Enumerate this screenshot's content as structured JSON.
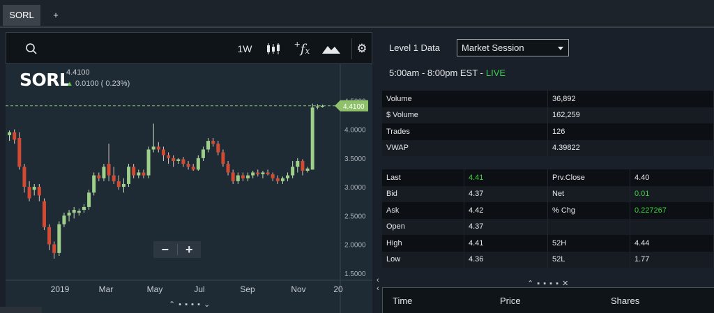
{
  "tabs": {
    "active_label": "SORL",
    "add_label": "+"
  },
  "toolbar": {
    "period_label": "1W",
    "fx_label": "f",
    "fx_plus": "+"
  },
  "icons": [
    "search-icon",
    "candlestick-icon",
    "function-icon",
    "mountain-chart-icon",
    "gear-icon",
    "zoom-out-icon",
    "zoom-in-icon"
  ],
  "quote_header": {
    "symbol": "SORL",
    "price": "4.4100",
    "change": "0.0100 ( 0.23%)"
  },
  "zoom": {
    "minus": "−",
    "plus": "+"
  },
  "handles": {
    "chart": "⌃ ▪ ▪ ▪ ▪ ⌄",
    "right": "⌃ ▪ ▪ ▪ ▪ ✕"
  },
  "chart_data": {
    "type": "candlestick",
    "x_tick_labels": [
      "2019",
      "Mar",
      "May",
      "Jul",
      "Sep",
      "Nov",
      "20"
    ],
    "y_tick_labels": [
      "4.5000",
      "4.0000",
      "3.5000",
      "3.0000",
      "2.5000",
      "2.0000",
      "1.5000"
    ],
    "ylim": [
      1.4,
      4.65
    ],
    "last_price_marker": "4.4100",
    "colors": {
      "up": "#9fd08a",
      "down": "#d24a32",
      "last": "#8fc06a",
      "background": "#1e2a34"
    },
    "candles": [
      [
        3.9,
        3.98,
        3.8,
        3.95
      ],
      [
        3.95,
        4.0,
        3.75,
        3.82
      ],
      [
        3.85,
        3.95,
        3.3,
        3.35
      ],
      [
        3.35,
        3.4,
        2.9,
        3.0
      ],
      [
        3.0,
        3.1,
        2.75,
        2.8
      ],
      [
        2.95,
        3.05,
        2.85,
        3.0
      ],
      [
        3.0,
        3.05,
        2.75,
        2.85
      ],
      [
        2.75,
        2.8,
        2.25,
        2.3
      ],
      [
        2.3,
        2.35,
        1.9,
        2.0
      ],
      [
        2.0,
        2.05,
        1.75,
        1.85
      ],
      [
        1.85,
        2.4,
        1.8,
        2.35
      ],
      [
        2.35,
        2.55,
        2.3,
        2.5
      ],
      [
        2.5,
        2.6,
        2.4,
        2.55
      ],
      [
        2.55,
        2.65,
        2.45,
        2.6
      ],
      [
        2.55,
        2.62,
        2.5,
        2.58
      ],
      [
        2.6,
        2.7,
        2.55,
        2.65
      ],
      [
        2.65,
        2.95,
        2.6,
        2.9
      ],
      [
        2.9,
        3.25,
        2.85,
        3.2
      ],
      [
        3.2,
        3.25,
        3.1,
        3.15
      ],
      [
        3.15,
        3.4,
        3.1,
        3.35
      ],
      [
        3.4,
        3.75,
        3.1,
        3.2
      ],
      [
        3.2,
        3.35,
        3.05,
        3.1
      ],
      [
        3.1,
        3.2,
        2.95,
        3.0
      ],
      [
        3.0,
        3.15,
        2.9,
        3.05
      ],
      [
        3.05,
        3.4,
        3.0,
        3.35
      ],
      [
        3.35,
        3.4,
        3.15,
        3.2
      ],
      [
        3.2,
        3.3,
        3.15,
        3.25
      ],
      [
        3.25,
        3.3,
        3.15,
        3.2
      ],
      [
        3.2,
        3.7,
        3.15,
        3.65
      ],
      [
        3.65,
        4.1,
        3.6,
        3.7
      ],
      [
        3.7,
        3.78,
        3.6,
        3.65
      ],
      [
        3.65,
        3.7,
        3.45,
        3.55
      ],
      [
        3.55,
        3.6,
        3.4,
        3.5
      ],
      [
        3.5,
        3.55,
        3.35,
        3.45
      ],
      [
        3.45,
        3.5,
        3.4,
        3.48
      ],
      [
        3.48,
        3.52,
        3.35,
        3.4
      ],
      [
        3.4,
        3.45,
        3.3,
        3.35
      ],
      [
        3.35,
        3.4,
        3.28,
        3.3
      ],
      [
        3.3,
        3.55,
        3.28,
        3.5
      ],
      [
        3.5,
        3.7,
        3.45,
        3.65
      ],
      [
        3.65,
        3.85,
        3.6,
        3.8
      ],
      [
        3.8,
        3.85,
        3.7,
        3.75
      ],
      [
        3.75,
        3.8,
        3.55,
        3.6
      ],
      [
        3.6,
        3.65,
        3.35,
        3.4
      ],
      [
        3.4,
        3.45,
        3.2,
        3.25
      ],
      [
        3.25,
        3.3,
        3.05,
        3.1
      ],
      [
        3.1,
        3.25,
        3.05,
        3.2
      ],
      [
        3.2,
        3.25,
        3.1,
        3.15
      ],
      [
        3.15,
        3.25,
        3.1,
        3.2
      ],
      [
        3.2,
        3.28,
        3.15,
        3.25
      ],
      [
        3.25,
        3.3,
        3.18,
        3.22
      ],
      [
        3.22,
        3.28,
        3.15,
        3.25
      ],
      [
        3.25,
        3.3,
        3.2,
        3.22
      ],
      [
        3.22,
        3.25,
        3.1,
        3.15
      ],
      [
        3.15,
        3.2,
        3.05,
        3.1
      ],
      [
        3.1,
        3.18,
        3.05,
        3.15
      ],
      [
        3.15,
        3.25,
        3.1,
        3.2
      ],
      [
        3.2,
        3.45,
        3.15,
        3.35
      ],
      [
        3.35,
        3.5,
        3.25,
        3.45
      ],
      [
        3.45,
        3.48,
        3.2,
        3.28
      ],
      [
        3.28,
        3.35,
        3.25,
        3.32
      ],
      [
        3.3,
        4.45,
        3.3,
        4.38
      ],
      [
        4.38,
        4.44,
        4.35,
        4.4
      ],
      [
        4.4,
        4.43,
        4.38,
        4.41
      ]
    ]
  },
  "level1": {
    "label": "Level 1 Data",
    "session_select": "Market Session",
    "session_hours": "5:00am - 8:00pm EST -",
    "session_status": "LIVE"
  },
  "stats": [
    {
      "label": "Volume",
      "value": "36,892"
    },
    {
      "label": "$ Volume",
      "value": "162,259"
    },
    {
      "label": " Trades",
      "value": "126"
    },
    {
      "label": " VWAP",
      "value": "4.39822"
    }
  ],
  "quote_grid": [
    {
      "l1": "Last",
      "v1": "4.41",
      "v1_green": true,
      "l2": "Prv.Close",
      "v2": "4.40",
      "v2_green": false
    },
    {
      "l1": "Bid",
      "v1": "4.37",
      "v1_green": false,
      "l2": "Net",
      "v2": "0.01",
      "v2_green": true
    },
    {
      "l1": "Ask",
      "v1": "4.42",
      "v1_green": false,
      "l2": "% Chg",
      "v2": "0.227267",
      "v2_green": true
    },
    {
      "l1": "Open",
      "v1": "4.37",
      "v1_green": false,
      "l2": "",
      "v2": "",
      "v2_green": false
    },
    {
      "l1": "High",
      "v1": "4.41",
      "v1_green": false,
      "l2": "52H",
      "v2": "4.44",
      "v2_green": false
    },
    {
      "l1": "Low",
      "v1": "4.36",
      "v1_green": false,
      "l2": "52L",
      "v2": "1.77",
      "v2_green": false
    }
  ],
  "time_sales": {
    "time_header": "Time",
    "price_header": "Price",
    "shares_header": "Shares"
  }
}
